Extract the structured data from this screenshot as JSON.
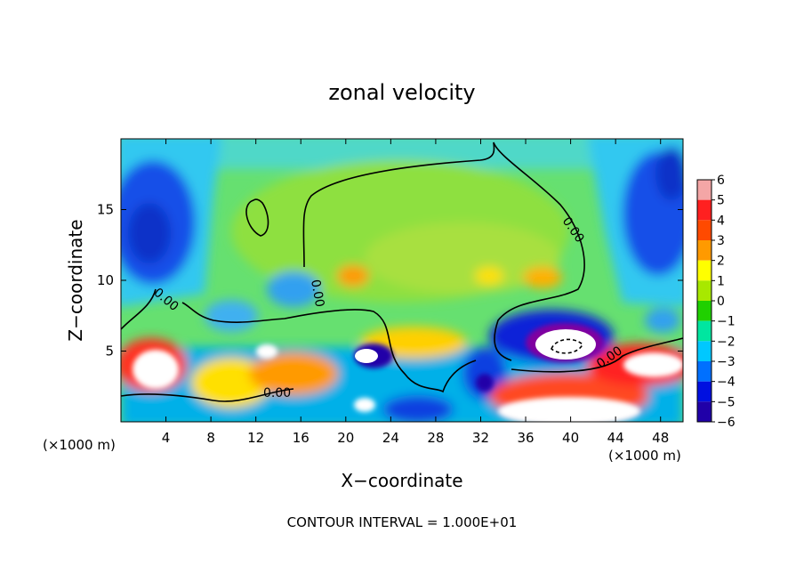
{
  "chart_data": {
    "type": "heatmap",
    "title": "zonal velocity",
    "xlabel": "X−coordinate",
    "ylabel": "Z−coordinate",
    "x_unit_left": "(×1000 m)",
    "x_unit_right": "(×1000 m)",
    "xlim": [
      0,
      50
    ],
    "ylim": [
      0,
      20
    ],
    "xticks": [
      4,
      8,
      12,
      16,
      20,
      24,
      28,
      32,
      36,
      40,
      44,
      48
    ],
    "yticks": [
      5,
      10,
      15
    ],
    "colorbar": {
      "levels": [
        6,
        5,
        4,
        3,
        2,
        1,
        0,
        -1,
        -2,
        -3,
        -4,
        -5,
        -6
      ],
      "labels": [
        "6",
        "5",
        "4",
        "3",
        "2",
        "1",
        "0",
        "−1",
        "−2",
        "−3",
        "−4",
        "−5",
        "−6"
      ],
      "colors": [
        "#f4a6a6",
        "#ff2020",
        "#ff4a00",
        "#ff9a00",
        "#ffff00",
        "#a8e800",
        "#20d000",
        "#00e6a0",
        "#00c8ff",
        "#0070ff",
        "#0010e0",
        "#2000a8",
        "#7000a0"
      ]
    },
    "contour_label": "0.00",
    "footer": "CONTOUR INTERVAL = 1.000E+01"
  }
}
